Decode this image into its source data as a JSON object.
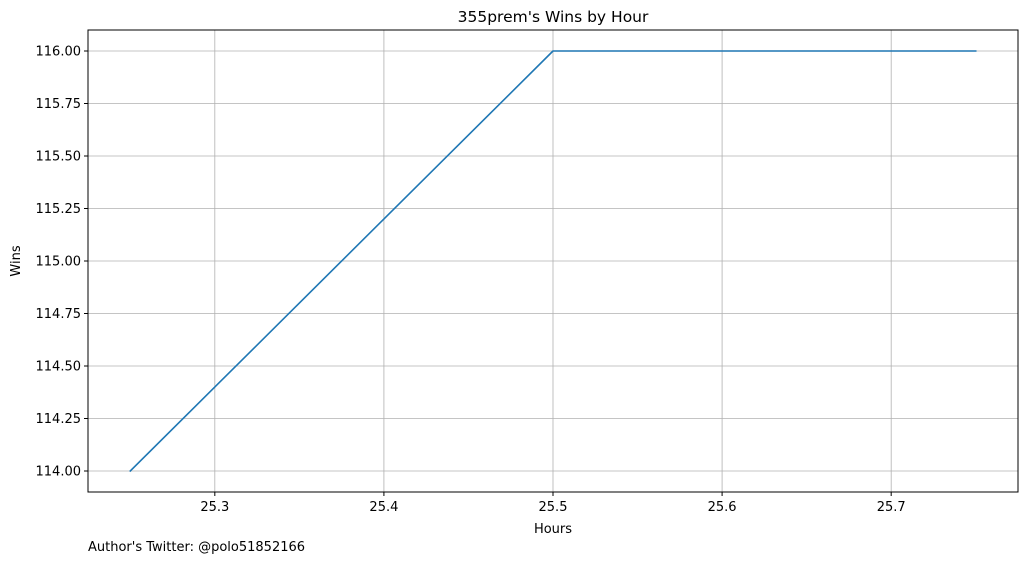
{
  "chart_data": {
    "type": "line",
    "title": "355prem's Wins by Hour",
    "xlabel": "Hours",
    "ylabel": "Wins",
    "xlim": [
      25.225,
      25.775
    ],
    "ylim": [
      113.9,
      116.1
    ],
    "xticks": [
      25.3,
      25.4,
      25.5,
      25.6,
      25.7
    ],
    "xtick_labels": [
      "25.3",
      "25.4",
      "25.5",
      "25.6",
      "25.7"
    ],
    "yticks": [
      114.0,
      114.25,
      114.5,
      114.75,
      115.0,
      115.25,
      115.5,
      115.75,
      116.0
    ],
    "ytick_labels": [
      "114.00",
      "114.25",
      "114.50",
      "114.75",
      "115.00",
      "115.25",
      "115.50",
      "115.75",
      "116.00"
    ],
    "grid": true,
    "series": [
      {
        "color": "#1f77b4",
        "x": [
          25.25,
          25.5,
          25.75
        ],
        "y": [
          114,
          116,
          116
        ]
      }
    ]
  },
  "footer": {
    "note": "Author's Twitter: @polo51852166"
  }
}
